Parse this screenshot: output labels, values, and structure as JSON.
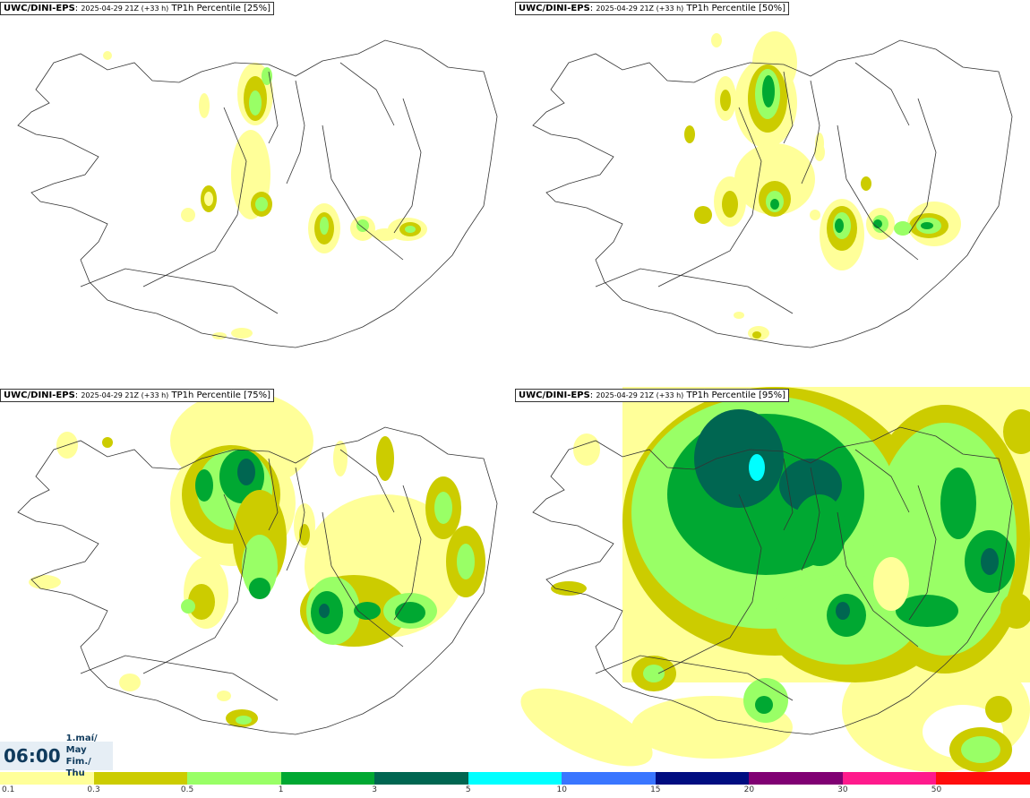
{
  "panels": [
    {
      "model": "UWC/DINI-EPS",
      "run": "2025-04-29 21Z (+33 h)",
      "param": "TP1h Percentile [25%]"
    },
    {
      "model": "UWC/DINI-EPS",
      "run": "2025-04-29 21Z (+33 h)",
      "param": "TP1h Percentile [50%]"
    },
    {
      "model": "UWC/DINI-EPS",
      "run": "2025-04-29 21Z (+33 h)",
      "param": "TP1h Percentile [75%]"
    },
    {
      "model": "UWC/DINI-EPS",
      "run": "2025-04-29 21Z (+33 h)",
      "param": "TP1h Percentile [95%]"
    }
  ],
  "time": {
    "clock": "06:00",
    "date": "1.maí/ May",
    "day": "Fim./ Thu"
  },
  "legend": {
    "ticks": [
      "0.1",
      "0.3",
      "0.5",
      "1",
      "3",
      "5",
      "10",
      "15",
      "20",
      "30",
      "50"
    ],
    "colors": [
      "#ffff99",
      "#cccc00",
      "#99ff66",
      "#00a832",
      "#006651",
      "#00ffff",
      "#3a76ff",
      "#000d80",
      "#800073",
      "#ff1a8c",
      "#ff0d0d"
    ]
  }
}
